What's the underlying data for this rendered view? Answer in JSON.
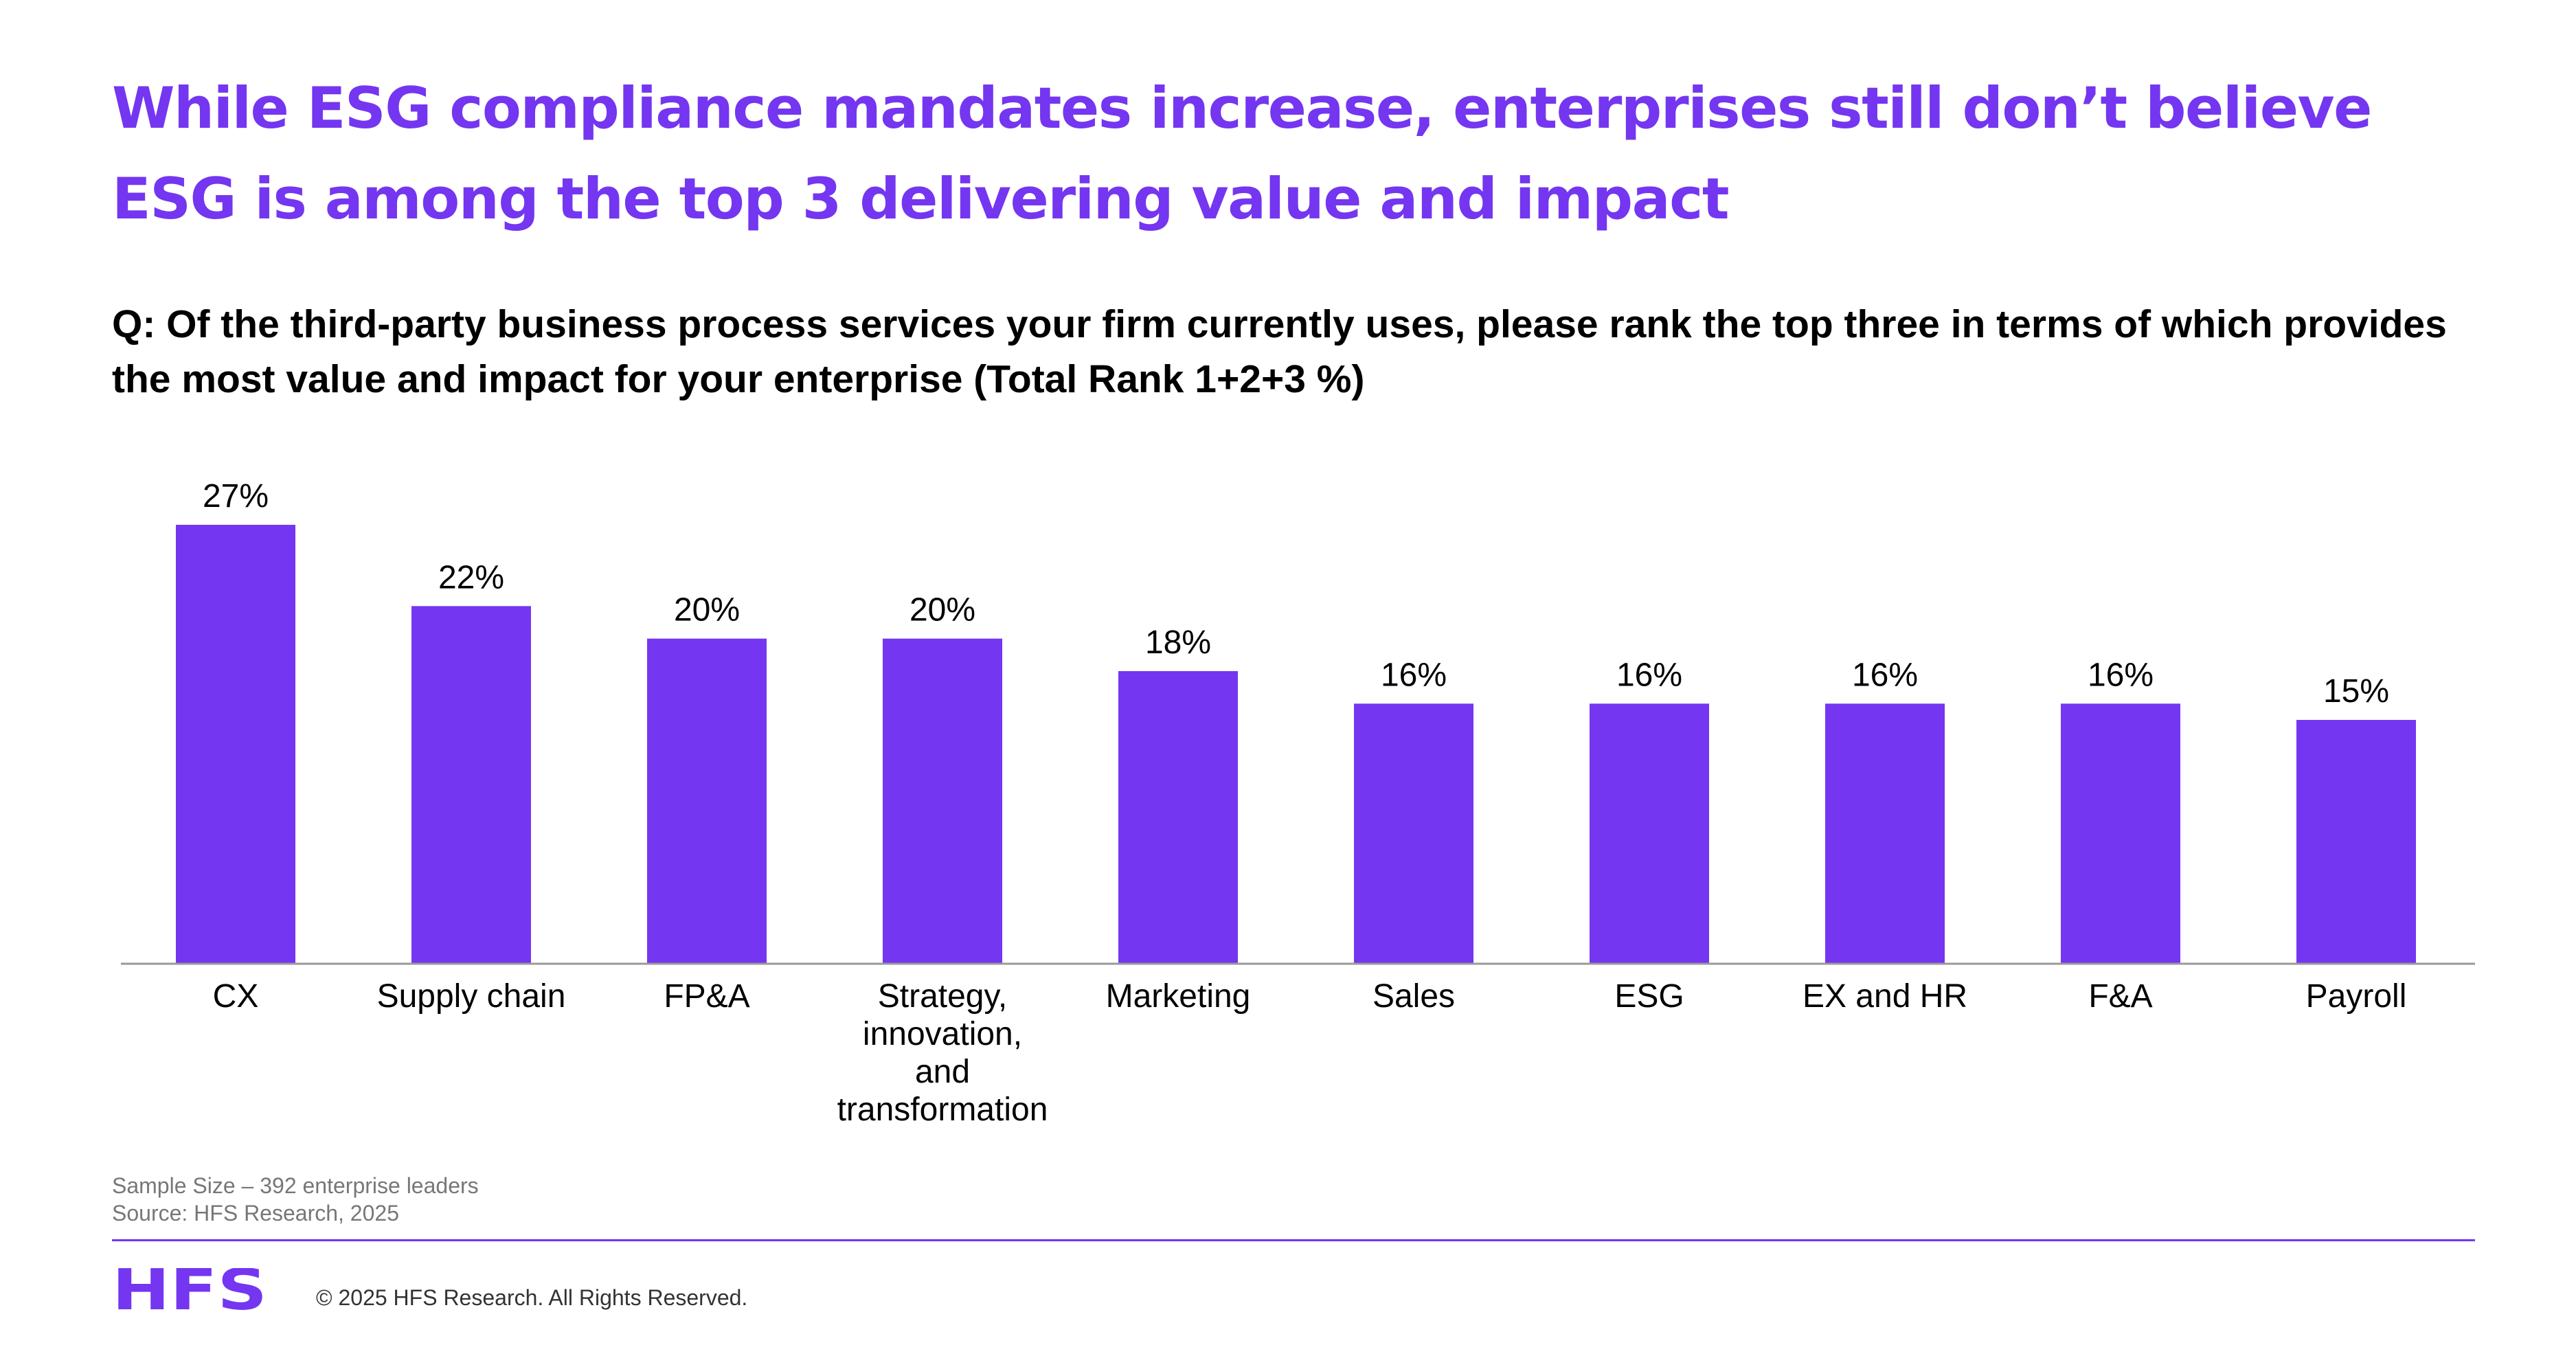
{
  "slide": {
    "title": "While ESG compliance mandates increase, enterprises still don’t believe ESG is among the top 3 delivering value and impact",
    "question": "Q: Of the third-party business process services your firm currently uses, please rank the top three in terms of which provides the most value and impact for your enterprise (Total Rank 1+2+3 %)"
  },
  "chart_data": {
    "type": "bar",
    "categories": [
      "CX",
      "Supply chain",
      "FP&A",
      "Strategy, innovation, and transformation",
      "Marketing",
      "Sales",
      "ESG",
      "EX and HR",
      "F&A",
      "Payroll"
    ],
    "category_label_lines": [
      [
        "CX"
      ],
      [
        "Supply chain"
      ],
      [
        "FP&A"
      ],
      [
        "Strategy,",
        "innovation,",
        "and",
        "transformation"
      ],
      [
        "Marketing"
      ],
      [
        "Sales"
      ],
      [
        "ESG"
      ],
      [
        "EX and HR"
      ],
      [
        "F&A"
      ],
      [
        "Payroll"
      ]
    ],
    "values": [
      27,
      22,
      20,
      20,
      18,
      16,
      16,
      16,
      16,
      15
    ],
    "data_labels": [
      "27%",
      "22%",
      "20%",
      "20%",
      "18%",
      "16%",
      "16%",
      "16%",
      "16%",
      "15%"
    ],
    "ylim": [
      0,
      27
    ],
    "grid": false,
    "legend": "none",
    "bar_color": "#7436f0"
  },
  "footer": {
    "sample_size": "Sample Size – 392 enterprise leaders",
    "source": "Source: HFS Research, 2025",
    "logo_text": "HFS",
    "copyright": "© 2025 HFS Research. All Rights Reserved."
  },
  "colors": {
    "accent": "#7436f0",
    "axis": "#999999",
    "footnote": "#777777"
  }
}
